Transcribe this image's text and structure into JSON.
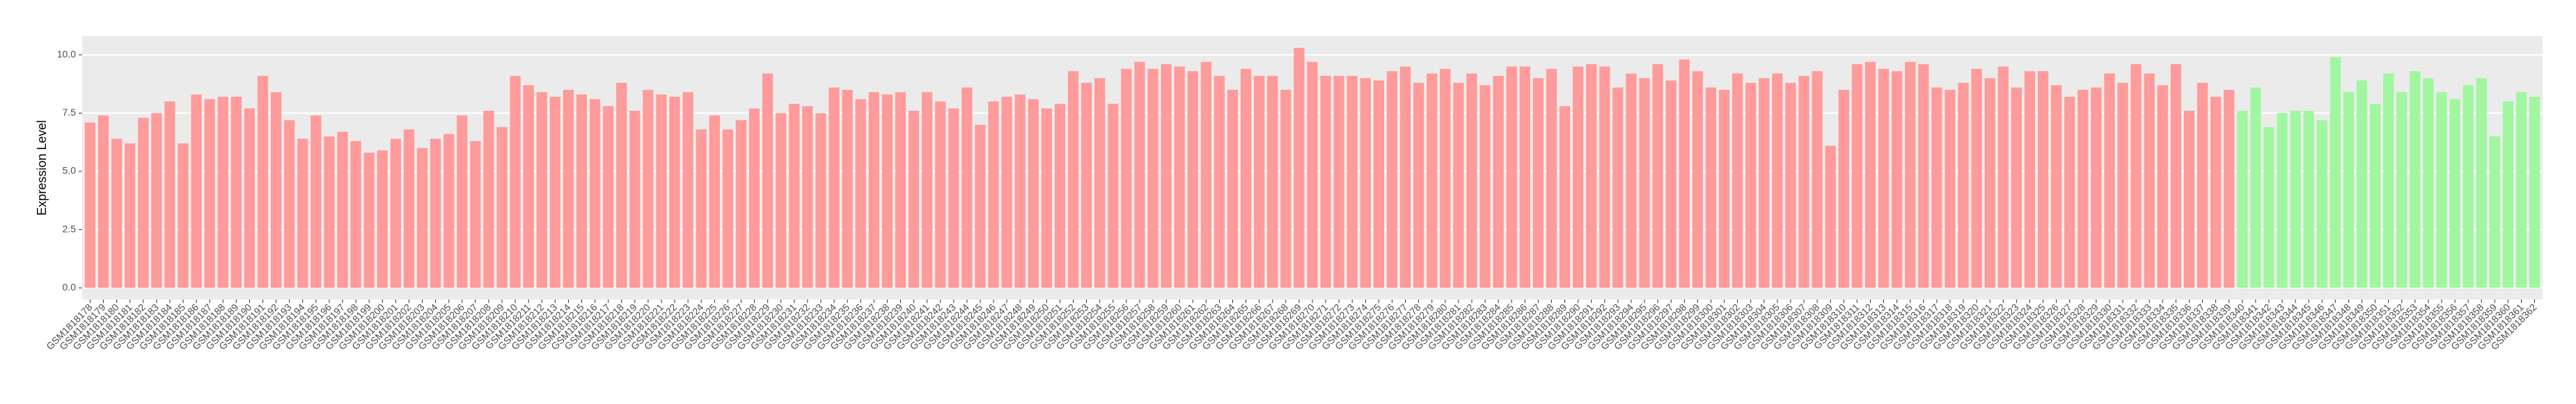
{
  "chart_data": {
    "type": "bar",
    "y_label": "Expression Level",
    "ylim": [
      -0.5,
      10.8
    ],
    "yticks": [
      {
        "value": 0,
        "label": "0.0"
      },
      {
        "value": 2.5,
        "label": "2.5"
      },
      {
        "value": 5,
        "label": "5.0"
      },
      {
        "value": 7.5,
        "label": "7.5"
      },
      {
        "value": 10,
        "label": "10.0"
      }
    ],
    "grid": true,
    "series": [
      {
        "color": "#ff9b9b",
        "categories": [
          "GSM1818178",
          "GSM1818179",
          "GSM1818180",
          "GSM1818181",
          "GSM1818182",
          "GSM1818183",
          "GSM1818184",
          "GSM1818185",
          "GSM1818186",
          "GSM1818187",
          "GSM1818188",
          "GSM1818189",
          "GSM1818190",
          "GSM1818191",
          "GSM1818192",
          "GSM1818193",
          "GSM1818194",
          "GSM1818195",
          "GSM1818196",
          "GSM1818197",
          "GSM1818198",
          "GSM1818199",
          "GSM1818200",
          "GSM1818201",
          "GSM1818202",
          "GSM1818203",
          "GSM1818204",
          "GSM1818205",
          "GSM1818206",
          "GSM1818207",
          "GSM1818208",
          "GSM1818209",
          "GSM1818210",
          "GSM1818211",
          "GSM1818212",
          "GSM1818213",
          "GSM1818214",
          "GSM1818215",
          "GSM1818216",
          "GSM1818217",
          "GSM1818218",
          "GSM1818219",
          "GSM1818220",
          "GSM1818221",
          "GSM1818222",
          "GSM1818223",
          "GSM1818224",
          "GSM1818225",
          "GSM1818226",
          "GSM1818227",
          "GSM1818228",
          "GSM1818229",
          "GSM1818230",
          "GSM1818231",
          "GSM1818232",
          "GSM1818233",
          "GSM1818234",
          "GSM1818235",
          "GSM1818236",
          "GSM1818237",
          "GSM1818238",
          "GSM1818239",
          "GSM1818240",
          "GSM1818241",
          "GSM1818242",
          "GSM1818243",
          "GSM1818244",
          "GSM1818245",
          "GSM1818246",
          "GSM1818247",
          "GSM1818248",
          "GSM1818249",
          "GSM1818250",
          "GSM1818251",
          "GSM1818252",
          "GSM1818253",
          "GSM1818254",
          "GSM1818255",
          "GSM1818256",
          "GSM1818257",
          "GSM1818258",
          "GSM1818259",
          "GSM1818260",
          "GSM1818261",
          "GSM1818262",
          "GSM1818263",
          "GSM1818264",
          "GSM1818265",
          "GSM1818266",
          "GSM1818267",
          "GSM1818268",
          "GSM1818269",
          "GSM1818270",
          "GSM1818271",
          "GSM1818272",
          "GSM1818273",
          "GSM1818274",
          "GSM1818275",
          "GSM1818276",
          "GSM1818277",
          "GSM1818278",
          "GSM1818279",
          "GSM1818280",
          "GSM1818281",
          "GSM1818282",
          "GSM1818283",
          "GSM1818284",
          "GSM1818285",
          "GSM1818286",
          "GSM1818287",
          "GSM1818288",
          "GSM1818289",
          "GSM1818290",
          "GSM1818291",
          "GSM1818292",
          "GSM1818293",
          "GSM1818294",
          "GSM1818295",
          "GSM1818296",
          "GSM1818297",
          "GSM1818298",
          "GSM1818299",
          "GSM1818300",
          "GSM1818301",
          "GSM1818302",
          "GSM1818303",
          "GSM1818304",
          "GSM1818305",
          "GSM1818306",
          "GSM1818307",
          "GSM1818308",
          "GSM1818309",
          "GSM1818310",
          "GSM1818311",
          "GSM1818312",
          "GSM1818313",
          "GSM1818314",
          "GSM1818315",
          "GSM1818316",
          "GSM1818317",
          "GSM1818318",
          "GSM1818319",
          "GSM1818320",
          "GSM1818321",
          "GSM1818322",
          "GSM1818323",
          "GSM1818324",
          "GSM1818325",
          "GSM1818326",
          "GSM1818327",
          "GSM1818328",
          "GSM1818329",
          "GSM1818330",
          "GSM1818331",
          "GSM1818332",
          "GSM1818333",
          "GSM1818334",
          "GSM1818335",
          "GSM1818336",
          "GSM1818337",
          "GSM1818338",
          "GSM1818339"
        ],
        "values": [
          7.1,
          7.4,
          6.4,
          6.2,
          7.3,
          7.5,
          8.0,
          6.2,
          8.3,
          8.1,
          8.2,
          8.2,
          7.7,
          9.1,
          8.4,
          7.2,
          6.4,
          7.4,
          6.5,
          6.7,
          6.3,
          5.8,
          5.9,
          6.4,
          6.8,
          6.0,
          6.4,
          6.6,
          7.4,
          6.3,
          7.6,
          6.9,
          9.1,
          8.7,
          8.4,
          8.2,
          8.5,
          8.3,
          8.1,
          7.8,
          8.8,
          7.6,
          8.5,
          8.3,
          8.2,
          8.4,
          6.8,
          7.4,
          6.8,
          7.2,
          7.7,
          9.2,
          7.5,
          7.9,
          7.8,
          7.5,
          8.6,
          8.5,
          8.1,
          8.4,
          8.3,
          8.4,
          7.6,
          8.4,
          8.0,
          7.7,
          8.6,
          7.0,
          8.0,
          8.2,
          8.3,
          8.1,
          7.7,
          7.9,
          9.3,
          8.8,
          9.0,
          7.9,
          9.4,
          9.7,
          9.4,
          9.6,
          9.5,
          9.3,
          9.7,
          9.1,
          8.5,
          9.4,
          9.1,
          9.1,
          8.5,
          10.3,
          9.7,
          9.1,
          9.1,
          9.1,
          9.0,
          8.9,
          9.3,
          9.5,
          8.8,
          9.2,
          9.4,
          8.8,
          9.2,
          8.7,
          9.1,
          9.5,
          9.5,
          9.0,
          9.4,
          7.8,
          9.5,
          9.6,
          9.5,
          8.6,
          9.2,
          9.0,
          9.6,
          8.9,
          9.8,
          9.3,
          8.6,
          8.5,
          9.2,
          8.8,
          9.0,
          9.2,
          8.8,
          9.1,
          9.3,
          6.1,
          8.5,
          9.6,
          9.7,
          9.4,
          9.3,
          9.7,
          9.6,
          8.6,
          8.5,
          8.8,
          9.4,
          9.0,
          9.5,
          8.6,
          9.3,
          9.3,
          8.7,
          8.2,
          8.5,
          8.6,
          9.2,
          8.8,
          9.6,
          9.2,
          8.7,
          9.6,
          7.6,
          8.8,
          8.2,
          8.5
        ]
      },
      {
        "color": "#a0f7a0",
        "categories": [
          "GSM1818340",
          "GSM1818341",
          "GSM1818342",
          "GSM1818343",
          "GSM1818344",
          "GSM1818345",
          "GSM1818346",
          "GSM1818347",
          "GSM1818348",
          "GSM1818349",
          "GSM1818350",
          "GSM1818351",
          "GSM1818352",
          "GSM1818353",
          "GSM1818354",
          "GSM1818355",
          "GSM1818356",
          "GSM1818357",
          "GSM1818358",
          "GSM1818359",
          "GSM1818360",
          "GSM1818361",
          "GSM1818362"
        ],
        "values": [
          7.6,
          8.6,
          6.9,
          7.5,
          7.6,
          7.6,
          7.2,
          9.9,
          8.4,
          8.9,
          7.9,
          9.2,
          8.4,
          9.3,
          9.0,
          8.4,
          8.1,
          8.7,
          9.0,
          6.5,
          8.0,
          8.4,
          8.2
        ]
      }
    ]
  }
}
